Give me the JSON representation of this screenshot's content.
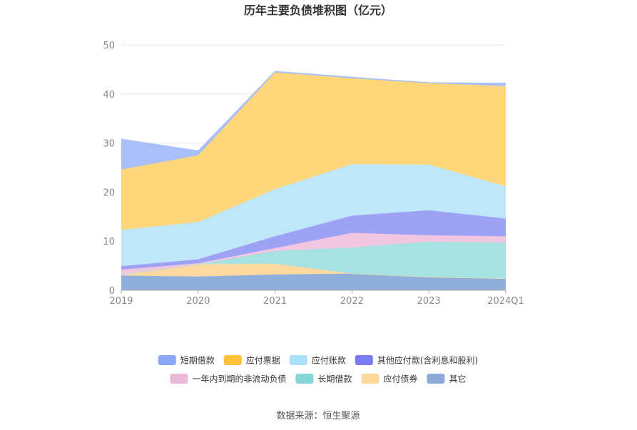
{
  "chart_data": {
    "type": "area",
    "stacked": true,
    "title": "历年主要负债堆积图（亿元）",
    "categories": [
      "2019",
      "2020",
      "2021",
      "2022",
      "2023",
      "2024Q1"
    ],
    "ylim": [
      0,
      50
    ],
    "yticks": [
      0,
      10,
      20,
      30,
      40,
      50
    ],
    "grid": "horizontal",
    "legend_position": "bottom",
    "series": [
      {
        "name": "其它",
        "color": "#8eaedc",
        "values": [
          3.0,
          2.8,
          3.2,
          3.4,
          2.7,
          2.4
        ]
      },
      {
        "name": "应付债券",
        "color": "#fdd9a0",
        "values": [
          0.2,
          2.5,
          2.2,
          0.0,
          0.0,
          0.0
        ]
      },
      {
        "name": "长期借款",
        "color": "#a6e2e1",
        "values": [
          0.0,
          0.0,
          2.6,
          5.3,
          7.2,
          7.3
        ]
      },
      {
        "name": "一年内到期的非流动负债",
        "color": "#f1c6e0",
        "values": [
          1.0,
          0.2,
          0.6,
          3.0,
          1.3,
          1.3
        ]
      },
      {
        "name": "其他应付款(含利息和股利)",
        "color": "#9ea2f5",
        "values": [
          0.7,
          0.8,
          2.4,
          3.5,
          5.1,
          3.6
        ]
      },
      {
        "name": "应付账款",
        "color": "#bfe7fa",
        "values": [
          7.4,
          7.6,
          9.6,
          10.5,
          9.3,
          6.6
        ]
      },
      {
        "name": "应付票据",
        "color": "#ffd67a",
        "values": [
          12.3,
          13.6,
          23.8,
          17.5,
          16.6,
          20.4
        ]
      },
      {
        "name": "短期借款",
        "color": "#a8bffa",
        "values": [
          6.2,
          0.9,
          0.2,
          0.2,
          0.1,
          0.6
        ]
      }
    ],
    "legend": [
      {
        "name": "短期借款",
        "color": "#8aa9f5"
      },
      {
        "name": "应付票据",
        "color": "#fdc23a"
      },
      {
        "name": "应付账款",
        "color": "#a9e1fb"
      },
      {
        "name": "其他应付款(含利息和股利)",
        "color": "#7b7cf0"
      },
      {
        "name": "一年内到期的非流动负债",
        "color": "#eab9d8"
      },
      {
        "name": "长期借款",
        "color": "#86d6d5"
      },
      {
        "name": "应付债券",
        "color": "#fcd79c"
      },
      {
        "name": "其它",
        "color": "#8eabd8"
      }
    ]
  },
  "source_text": "数据来源：恒生聚源"
}
